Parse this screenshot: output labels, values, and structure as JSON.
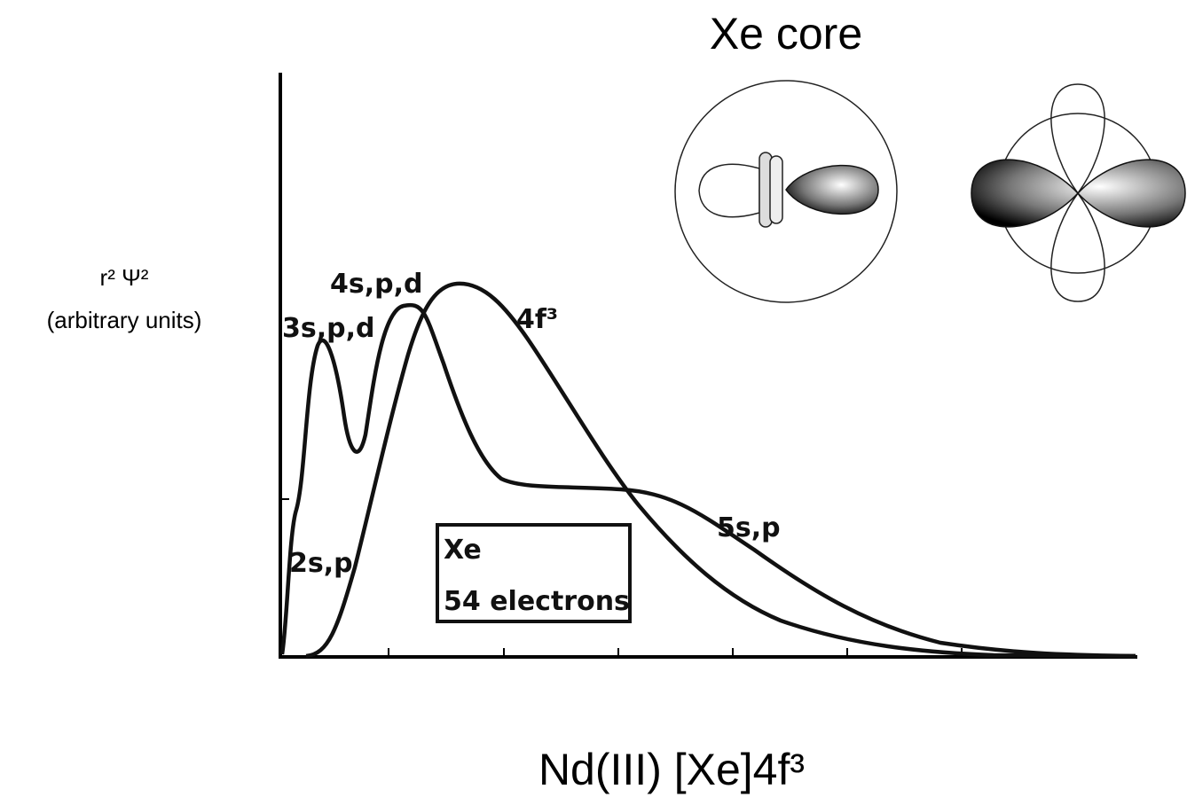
{
  "title": "Xe core",
  "y_axis_label": {
    "line1": "r² Ψ²",
    "line2": "(arbitrary units)"
  },
  "curve_labels": [
    "3s,p,d",
    "4s,p,d",
    "4f³",
    "5s,p",
    "2s,p"
  ],
  "box": {
    "line1": "Xe",
    "line2": "54 electrons"
  },
  "caption": "Nd(III) [Xe]4f³"
}
